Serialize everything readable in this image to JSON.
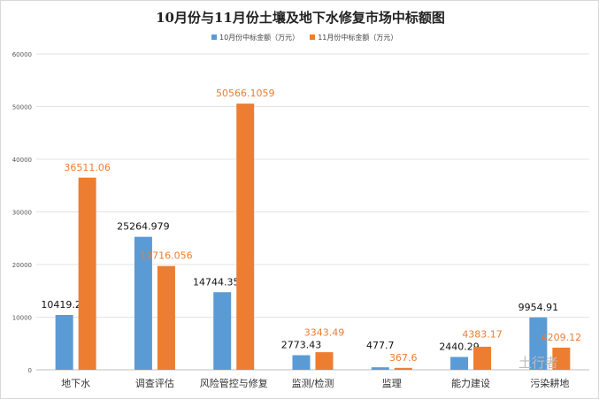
{
  "chart_data": {
    "type": "bar",
    "title": "10月份与11月份土壤及地下水修复市场中标额图",
    "categories": [
      "地下水",
      "调查评估",
      "风险管控与修复",
      "监测/检测",
      "监理",
      "能力建设",
      "污染耕地"
    ],
    "series": [
      {
        "name": "10月份中标金额（万元）",
        "color": "#5b9bd5",
        "values": [
          10419.26,
          25264.979,
          14744.3533,
          2773.43,
          477.7,
          2440.29,
          9954.91
        ],
        "labels": [
          "10419.26",
          "25264.979",
          "14744.3533",
          "2773.43",
          "477.7",
          "2440.29",
          "9954.91"
        ]
      },
      {
        "name": "11月份中标金额（万元）",
        "color": "#ed7d31",
        "values": [
          36511.06,
          19716.056,
          50566.1059,
          3343.49,
          367.6,
          4383.17,
          4209.12
        ],
        "labels": [
          "36511.06",
          "19716.056",
          "50566.1059",
          "3343.49",
          "367.6",
          "4383.17",
          "4209.12"
        ]
      }
    ],
    "ylim": [
      0,
      60000
    ],
    "yticks": [
      0,
      10000,
      20000,
      30000,
      40000,
      50000,
      60000
    ],
    "grid": true,
    "legend": "top"
  },
  "watermark": "土行者"
}
